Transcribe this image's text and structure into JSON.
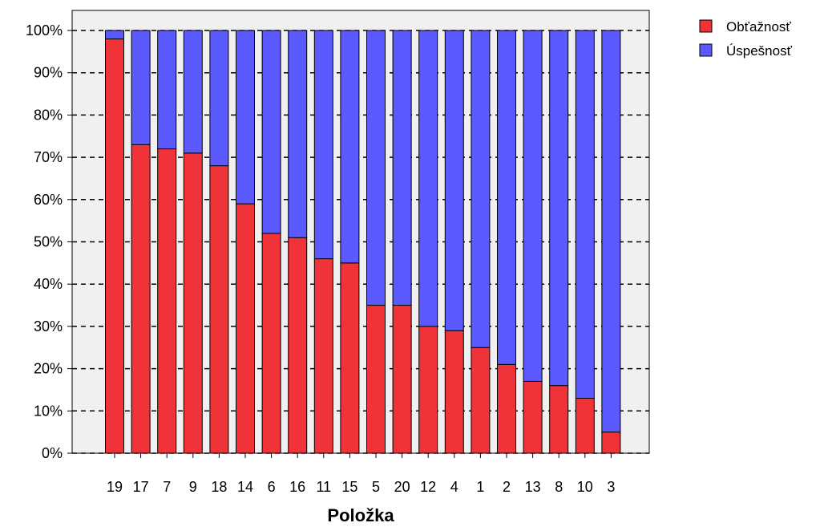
{
  "chart_data": {
    "type": "bar",
    "stacked": true,
    "categories": [
      "19",
      "17",
      "7",
      "9",
      "18",
      "14",
      "6",
      "16",
      "11",
      "15",
      "5",
      "20",
      "12",
      "4",
      "1",
      "2",
      "13",
      "8",
      "10",
      "3"
    ],
    "series": [
      {
        "name": "Obťažnosť",
        "color": "#ef3338",
        "values": [
          98,
          73,
          72,
          71,
          68,
          59,
          52,
          51,
          46,
          45,
          35,
          35,
          30,
          29,
          25,
          21,
          17,
          16,
          13,
          5
        ]
      },
      {
        "name": "Úspešnosť",
        "color": "#5a5aff",
        "values": [
          2,
          27,
          28,
          29,
          32,
          41,
          48,
          49,
          54,
          55,
          65,
          65,
          70,
          71,
          75,
          79,
          83,
          84,
          87,
          95
        ]
      }
    ],
    "xlabel": "Položka",
    "ylabel": "",
    "ylim": [
      0,
      100
    ],
    "yticks": [
      "0%",
      "10%",
      "20%",
      "30%",
      "40%",
      "50%",
      "60%",
      "70%",
      "80%",
      "90%",
      "100%"
    ],
    "grid": "dashed horizontal",
    "legend_position": "top-right",
    "plot_background": "#f0f0f0"
  }
}
